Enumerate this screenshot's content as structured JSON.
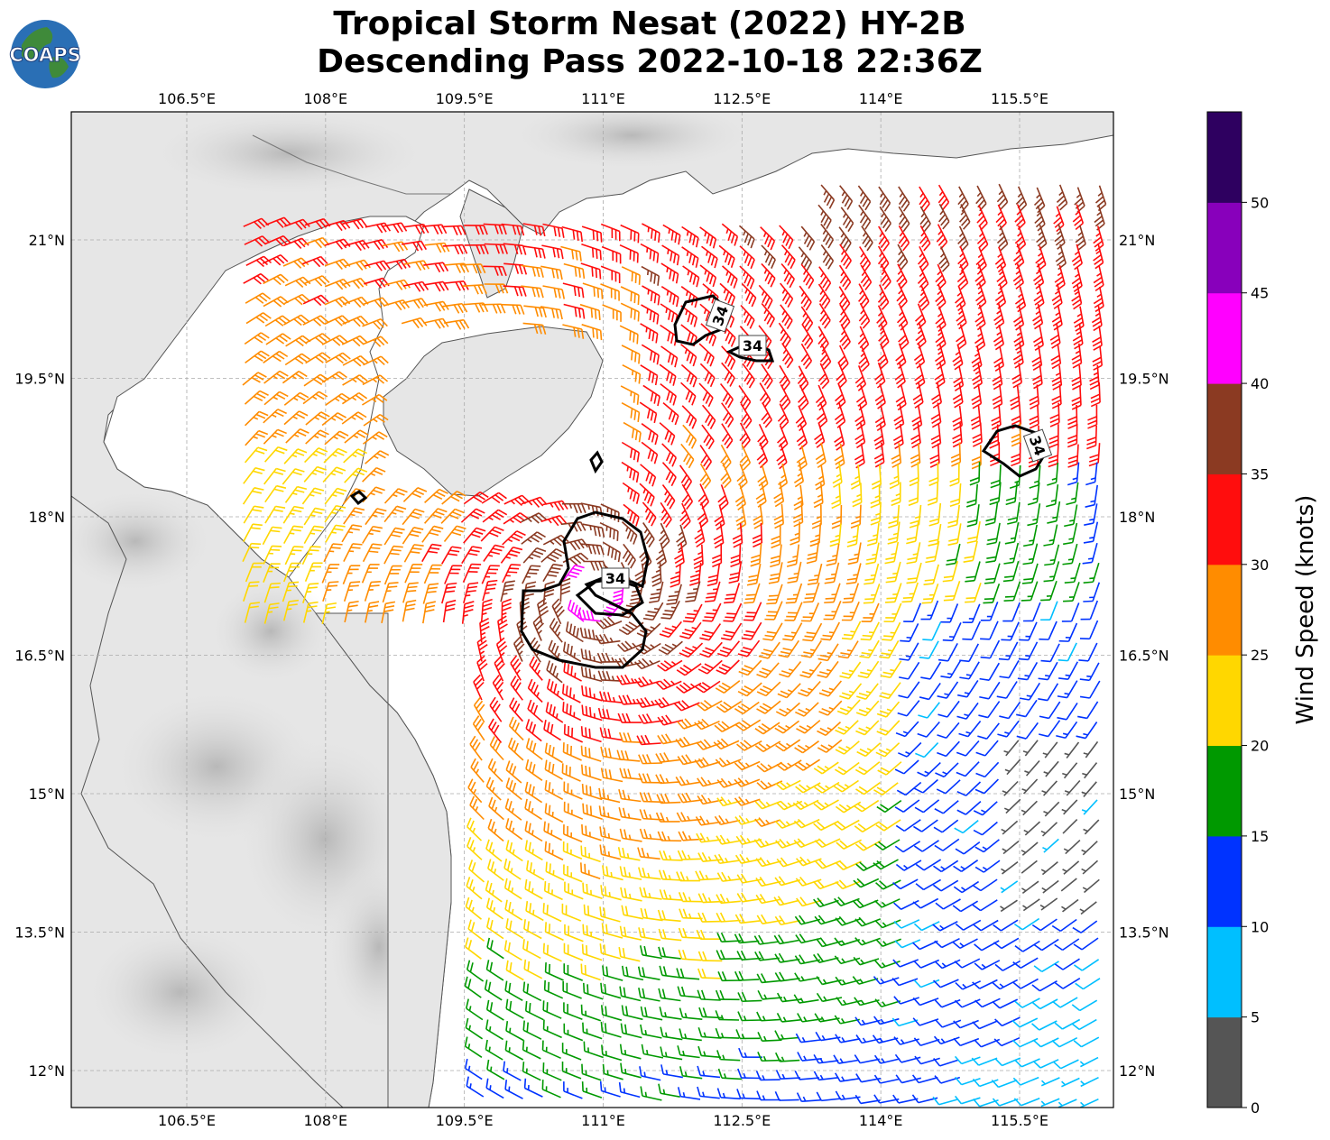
{
  "title_line1": "Tropical Storm Nesat (2022) HY-2B",
  "title_line2": "Descending Pass 2022-10-18 22:36Z",
  "logo_text": "COAPS",
  "map": {
    "lon_labels": [
      "106.5°E",
      "108°E",
      "109.5°E",
      "111°E",
      "112.5°E",
      "114°E",
      "115.5°E"
    ],
    "lat_labels": [
      "21°N",
      "19.5°N",
      "18°N",
      "16.5°N",
      "15°N",
      "13.5°N",
      "12°N"
    ],
    "contour_label": "34"
  },
  "colorbar": {
    "label": "Wind Speed (knots)",
    "ticks": [
      "0",
      "5",
      "10",
      "15",
      "20",
      "25",
      "30",
      "35",
      "40",
      "45",
      "50"
    ],
    "colors": [
      "#555555",
      "#00bfff",
      "#0033ff",
      "#009900",
      "#ffd700",
      "#ff8c00",
      "#ff0d0d",
      "#8b3a22",
      "#ff00ff",
      "#8800bb",
      "#2e0060"
    ]
  },
  "storm_center": {
    "lon": 110.9,
    "lat": 17.2
  }
}
